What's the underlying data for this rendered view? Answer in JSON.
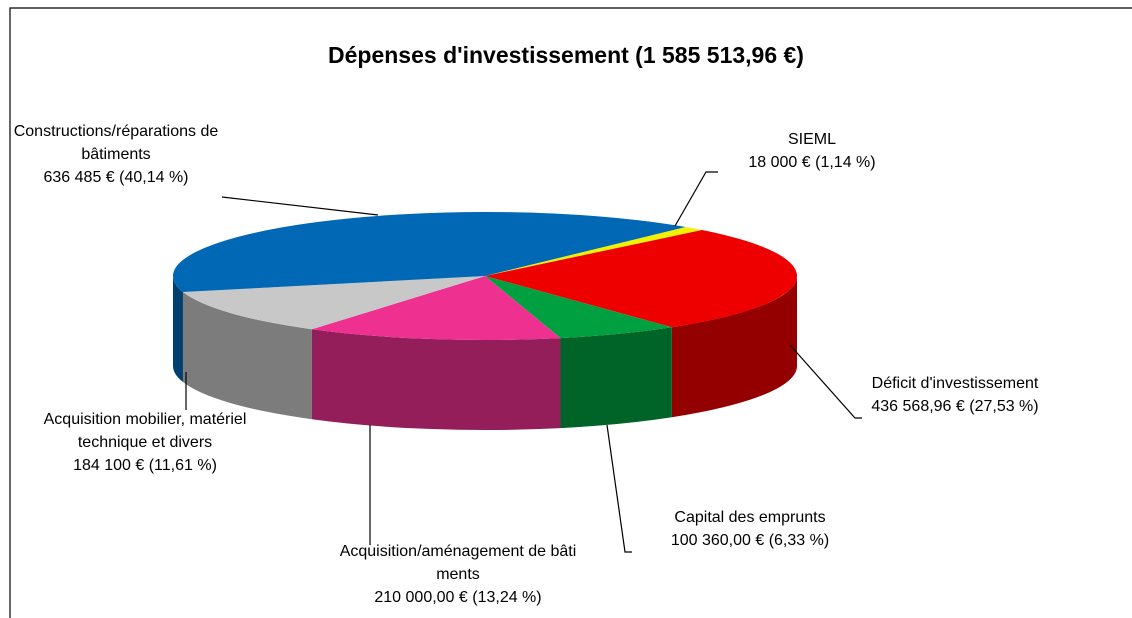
{
  "chart_data": {
    "type": "pie",
    "title": "Dépenses d'investissement  (1 585 513,96 €)",
    "categories": [
      "SIEML",
      "Déficit d'investissement",
      "Capital des emprunts",
      "Acquisition/aménagement de bâtiments",
      "Acquisition mobilier, matériel technique et divers",
      "Constructions/réparations de bâtiments"
    ],
    "values": [
      18000,
      436568.96,
      100360,
      210000,
      184100,
      636485
    ],
    "value_labels": [
      "18 000 € (1,14 %)",
      "436 568,96 € (27,53 %)",
      "100 360,00 € (6,33 %)",
      "210 000,00 € (13,24 %)",
      "184 100 € (11,61 %)",
      "636 485 € (40,14 %)"
    ],
    "colors": [
      "#f2f200",
      "#ee0000",
      "#00a040",
      "#ee3190",
      "#c8c8c8",
      "#0068b4"
    ]
  }
}
